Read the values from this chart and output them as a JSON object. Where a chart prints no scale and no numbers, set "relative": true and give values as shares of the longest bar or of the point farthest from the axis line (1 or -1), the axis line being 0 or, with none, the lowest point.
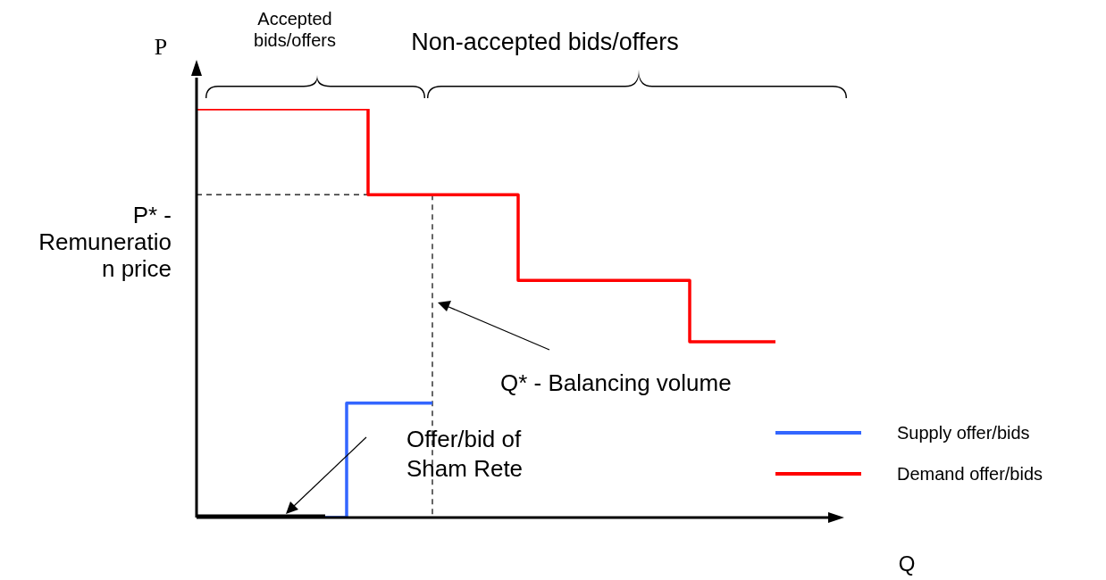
{
  "chart_data": {
    "type": "step",
    "relative": true,
    "xlabel": "Q",
    "ylabel": "P",
    "legend": "bottom right",
    "marker": "none",
    "categories": [
      null,
      null,
      null,
      null,
      null,
      null,
      null,
      null,
      null,
      null,
      null,
      null,
      null,
      null,
      null,
      null,
      null,
      null,
      null,
      null,
      null,
      null,
      null,
      null,
      null,
      null,
      null,
      null,
      null,
      null,
      null
    ],
    "series": [
      {
        "name": "Supply offer/bids",
        "color": "#3366ff",
        "values": [
          null,
          null,
          null,
          null,
          null,
          null,
          0,
          0.28,
          0.28,
          0.28,
          0.28,
          0.28,
          null,
          null,
          null,
          null,
          null,
          null,
          null,
          null,
          null,
          null,
          null,
          null,
          null,
          null,
          null,
          null,
          null,
          null,
          null
        ]
      },
      {
        "name": "Demand offer/bids",
        "color": "#ff0000",
        "values": [
          1,
          1,
          1,
          1,
          1,
          1,
          1,
          1,
          0.79,
          0.79,
          0.79,
          0.79,
          0.79,
          0.79,
          0.79,
          0.58,
          0.58,
          0.58,
          0.58,
          0.58,
          0.58,
          0.58,
          0.58,
          0.43,
          0.43,
          0.43,
          0.43,
          0.43,
          null,
          null,
          null
        ]
      },
      {
        "color": "#000000",
        "values": [
          0,
          0,
          0,
          0,
          0,
          0,
          0,
          null,
          null,
          null,
          null,
          null,
          null,
          null,
          null,
          null,
          null,
          null,
          null,
          null,
          null,
          null,
          null,
          null,
          null,
          null,
          null,
          null,
          null,
          null,
          null
        ]
      },
      {
        "color": "#000000",
        "line_style": "dashed",
        "values": [
          0.79,
          0.79,
          0.79,
          0.79,
          0.79,
          0.79,
          0.79,
          0.79,
          0.79,
          0.79,
          0.79,
          0,
          null,
          null,
          null,
          null,
          null,
          null,
          null,
          null,
          null,
          null,
          null,
          null,
          null,
          null,
          null,
          null,
          null,
          null,
          null
        ]
      }
    ],
    "annotations": [
      "Accepted\nbids/offers",
      "Non-accepted bids/offers",
      "P* -\nRemuneratio\nn price",
      "Q* - Balancing volume",
      "Offer/bid of\nSham Rete"
    ]
  }
}
